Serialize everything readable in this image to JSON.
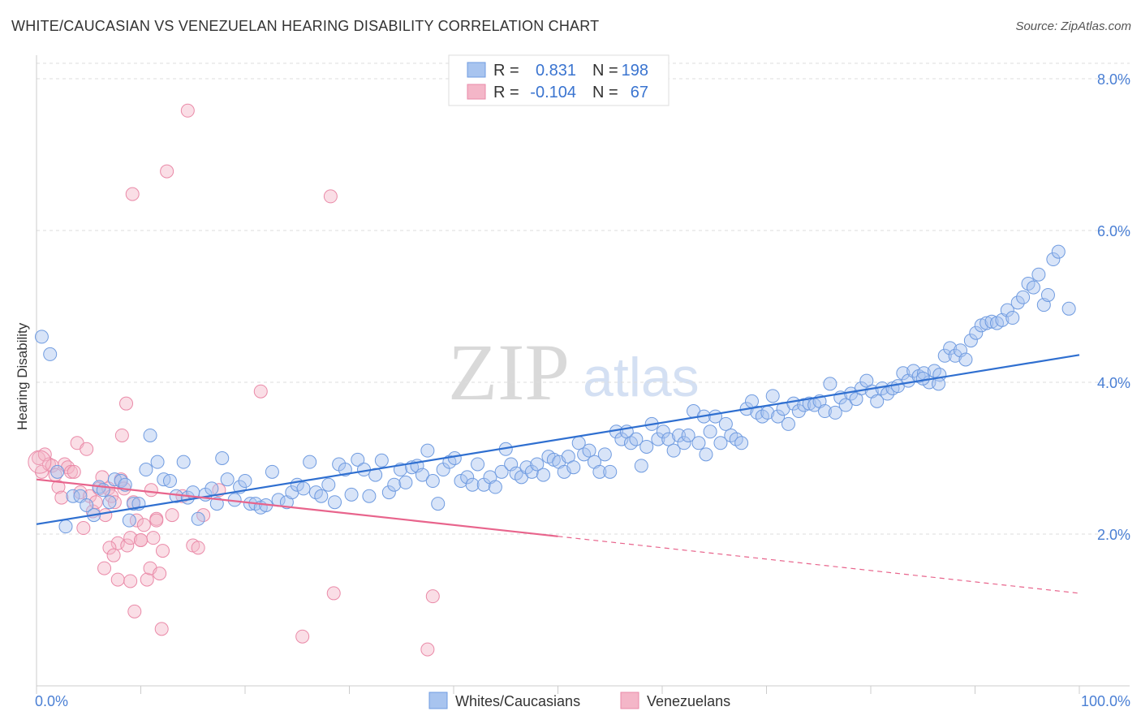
{
  "title": "WHITE/CAUCASIAN VS VENEZUELAN HEARING DISABILITY CORRELATION CHART",
  "source": "Source: ZipAtlas.com",
  "watermark": {
    "zip": "ZIP",
    "atlas": "atlas"
  },
  "colors": {
    "blue_fill": "#a8c4ef",
    "blue_stroke": "#6f9be0",
    "blue_line": "#2f6fd0",
    "pink_fill": "#f4b6c8",
    "pink_stroke": "#ea8aa8",
    "pink_line": "#e8648c",
    "tick_text": "#4a7fd4",
    "grid": "#dddddd"
  },
  "legend": {
    "rows": [
      {
        "r_label": "R =",
        "r_value": "0.831",
        "n_label": "N =",
        "n_value": "198",
        "series": "blue"
      },
      {
        "r_label": "R =",
        "r_value": "-0.104",
        "n_label": "N =",
        "n_value": "67",
        "series": "pink"
      }
    ]
  },
  "bottom_legend": [
    {
      "label": "Whites/Caucasians",
      "series": "blue"
    },
    {
      "label": "Venezuelans",
      "series": "pink"
    }
  ],
  "chart_data": {
    "type": "scatter",
    "title": "WHITE/CAUCASIAN VS VENEZUELAN HEARING DISABILITY CORRELATION CHART",
    "xlabel": "",
    "ylabel": "Hearing Disability",
    "xlim": [
      0,
      100
    ],
    "ylim": [
      0,
      8.2
    ],
    "x_tick_labels": [
      "0.0%",
      "100.0%"
    ],
    "y_ticks": [
      2.0,
      4.0,
      6.0,
      8.0
    ],
    "y_tick_labels": [
      "2.0%",
      "4.0%",
      "6.0%",
      "8.0%"
    ],
    "series": [
      {
        "name": "Whites/Caucasians",
        "R": 0.831,
        "N": 198,
        "trend": {
          "x": [
            0,
            100
          ],
          "y": [
            2.13,
            4.36
          ],
          "dashed_from": null
        },
        "points": [
          [
            0.5,
            4.6
          ],
          [
            1.3,
            4.37
          ],
          [
            2.0,
            2.82
          ],
          [
            2.8,
            2.1
          ],
          [
            3.5,
            2.5
          ],
          [
            4.2,
            2.5
          ],
          [
            4.8,
            2.38
          ],
          [
            5.5,
            2.25
          ],
          [
            6.0,
            2.62
          ],
          [
            6.4,
            2.58
          ],
          [
            7.0,
            2.42
          ],
          [
            7.5,
            2.72
          ],
          [
            8.1,
            2.7
          ],
          [
            8.5,
            2.65
          ],
          [
            8.9,
            2.18
          ],
          [
            9.3,
            2.4
          ],
          [
            9.8,
            2.4
          ],
          [
            10.5,
            2.85
          ],
          [
            10.9,
            3.3
          ],
          [
            11.6,
            2.95
          ],
          [
            12.2,
            2.72
          ],
          [
            12.8,
            2.7
          ],
          [
            13.4,
            2.5
          ],
          [
            14.1,
            2.95
          ],
          [
            14.5,
            2.48
          ],
          [
            15.0,
            2.55
          ],
          [
            15.5,
            2.2
          ],
          [
            16.2,
            2.52
          ],
          [
            16.8,
            2.6
          ],
          [
            17.3,
            2.4
          ],
          [
            17.8,
            3.0
          ],
          [
            18.3,
            2.72
          ],
          [
            19.0,
            2.45
          ],
          [
            19.5,
            2.62
          ],
          [
            20.0,
            2.7
          ],
          [
            20.5,
            2.4
          ],
          [
            21.0,
            2.4
          ],
          [
            21.5,
            2.35
          ],
          [
            22.0,
            2.38
          ],
          [
            22.6,
            2.82
          ],
          [
            23.2,
            2.45
          ],
          [
            24.0,
            2.42
          ],
          [
            24.5,
            2.55
          ],
          [
            25.0,
            2.65
          ],
          [
            25.6,
            2.6
          ],
          [
            26.2,
            2.95
          ],
          [
            26.8,
            2.55
          ],
          [
            27.3,
            2.5
          ],
          [
            28.0,
            2.65
          ],
          [
            28.6,
            2.42
          ],
          [
            29.0,
            2.92
          ],
          [
            29.6,
            2.85
          ],
          [
            30.2,
            2.52
          ],
          [
            30.8,
            2.98
          ],
          [
            31.4,
            2.85
          ],
          [
            31.9,
            2.5
          ],
          [
            32.5,
            2.78
          ],
          [
            33.1,
            2.97
          ],
          [
            33.8,
            2.55
          ],
          [
            34.3,
            2.65
          ],
          [
            34.9,
            2.85
          ],
          [
            35.4,
            2.68
          ],
          [
            36.0,
            2.88
          ],
          [
            36.5,
            2.9
          ],
          [
            37.0,
            2.78
          ],
          [
            37.5,
            3.1
          ],
          [
            38.0,
            2.7
          ],
          [
            38.5,
            2.4
          ],
          [
            39.0,
            2.85
          ],
          [
            39.6,
            2.95
          ],
          [
            40.1,
            3.0
          ],
          [
            40.7,
            2.7
          ],
          [
            41.3,
            2.75
          ],
          [
            41.8,
            2.65
          ],
          [
            42.3,
            2.92
          ],
          [
            42.9,
            2.65
          ],
          [
            43.5,
            2.75
          ],
          [
            44.0,
            2.62
          ],
          [
            44.6,
            2.82
          ],
          [
            45.0,
            3.12
          ],
          [
            45.5,
            2.92
          ],
          [
            46.0,
            2.8
          ],
          [
            46.5,
            2.75
          ],
          [
            47.0,
            2.88
          ],
          [
            47.5,
            2.82
          ],
          [
            48.0,
            2.92
          ],
          [
            48.6,
            2.78
          ],
          [
            49.1,
            3.02
          ],
          [
            49.6,
            2.98
          ],
          [
            50.1,
            2.95
          ],
          [
            50.6,
            2.82
          ],
          [
            51.0,
            3.02
          ],
          [
            51.5,
            2.88
          ],
          [
            52.0,
            3.2
          ],
          [
            52.5,
            3.05
          ],
          [
            53.0,
            3.1
          ],
          [
            53.5,
            2.95
          ],
          [
            54.0,
            2.82
          ],
          [
            54.5,
            3.05
          ],
          [
            55.0,
            2.82
          ],
          [
            55.6,
            3.35
          ],
          [
            56.1,
            3.25
          ],
          [
            56.6,
            3.35
          ],
          [
            57.0,
            3.2
          ],
          [
            57.5,
            3.25
          ],
          [
            58.0,
            2.9
          ],
          [
            58.5,
            3.15
          ],
          [
            59.0,
            3.45
          ],
          [
            59.6,
            3.25
          ],
          [
            60.1,
            3.35
          ],
          [
            60.6,
            3.25
          ],
          [
            61.1,
            3.1
          ],
          [
            61.6,
            3.3
          ],
          [
            62.1,
            3.2
          ],
          [
            62.5,
            3.3
          ],
          [
            63.0,
            3.62
          ],
          [
            63.5,
            3.2
          ],
          [
            64.0,
            3.55
          ],
          [
            64.6,
            3.35
          ],
          [
            65.1,
            3.55
          ],
          [
            65.6,
            3.2
          ],
          [
            66.1,
            3.45
          ],
          [
            66.6,
            3.3
          ],
          [
            67.1,
            3.25
          ],
          [
            67.6,
            3.2
          ],
          [
            68.1,
            3.65
          ],
          [
            68.6,
            3.75
          ],
          [
            69.1,
            3.6
          ],
          [
            69.6,
            3.55
          ],
          [
            70.1,
            3.6
          ],
          [
            70.6,
            3.82
          ],
          [
            71.1,
            3.55
          ],
          [
            71.6,
            3.65
          ],
          [
            72.1,
            3.45
          ],
          [
            72.6,
            3.72
          ],
          [
            73.1,
            3.62
          ],
          [
            73.6,
            3.7
          ],
          [
            74.1,
            3.72
          ],
          [
            74.6,
            3.7
          ],
          [
            75.1,
            3.75
          ],
          [
            75.6,
            3.62
          ],
          [
            76.1,
            3.98
          ],
          [
            76.6,
            3.6
          ],
          [
            77.1,
            3.8
          ],
          [
            77.6,
            3.7
          ],
          [
            78.1,
            3.85
          ],
          [
            78.6,
            3.78
          ],
          [
            79.1,
            3.92
          ],
          [
            79.6,
            4.02
          ],
          [
            80.1,
            3.88
          ],
          [
            80.6,
            3.75
          ],
          [
            81.1,
            3.92
          ],
          [
            81.6,
            3.85
          ],
          [
            82.1,
            3.92
          ],
          [
            82.6,
            3.95
          ],
          [
            83.1,
            4.12
          ],
          [
            83.6,
            4.02
          ],
          [
            84.1,
            4.15
          ],
          [
            84.6,
            4.08
          ],
          [
            85.1,
            4.12
          ],
          [
            85.6,
            4.0
          ],
          [
            86.1,
            4.15
          ],
          [
            86.6,
            4.1
          ],
          [
            87.1,
            4.35
          ],
          [
            87.6,
            4.45
          ],
          [
            88.1,
            4.35
          ],
          [
            88.6,
            4.42
          ],
          [
            89.1,
            4.3
          ],
          [
            89.6,
            4.55
          ],
          [
            90.1,
            4.65
          ],
          [
            90.6,
            4.75
          ],
          [
            91.1,
            4.78
          ],
          [
            91.6,
            4.8
          ],
          [
            92.1,
            4.78
          ],
          [
            92.6,
            4.82
          ],
          [
            93.1,
            4.95
          ],
          [
            93.6,
            4.85
          ],
          [
            94.1,
            5.05
          ],
          [
            94.6,
            5.12
          ],
          [
            95.1,
            5.3
          ],
          [
            95.6,
            5.25
          ],
          [
            96.1,
            5.42
          ],
          [
            96.6,
            5.02
          ],
          [
            97.0,
            5.15
          ],
          [
            97.5,
            5.62
          ],
          [
            98.0,
            5.72
          ],
          [
            99.0,
            4.97
          ],
          [
            85.0,
            4.05
          ],
          [
            86.5,
            3.98
          ],
          [
            64.2,
            3.05
          ]
        ]
      },
      {
        "name": "Venezuelans",
        "R": -0.104,
        "N": 67,
        "trend": {
          "x": [
            0,
            100
          ],
          "y": [
            2.72,
            1.22
          ],
          "dashed_from": 50
        },
        "points": [
          [
            0.2,
            3.0
          ],
          [
            0.5,
            2.82
          ],
          [
            0.8,
            3.05
          ],
          [
            1.2,
            2.92
          ],
          [
            1.5,
            2.9
          ],
          [
            1.8,
            2.78
          ],
          [
            2.1,
            2.62
          ],
          [
            2.4,
            2.48
          ],
          [
            2.7,
            2.92
          ],
          [
            3.0,
            2.88
          ],
          [
            3.3,
            2.82
          ],
          [
            3.6,
            2.82
          ],
          [
            3.9,
            3.2
          ],
          [
            4.2,
            2.55
          ],
          [
            4.5,
            2.08
          ],
          [
            4.8,
            3.12
          ],
          [
            5.1,
            2.5
          ],
          [
            5.4,
            2.3
          ],
          [
            5.7,
            2.42
          ],
          [
            6.0,
            2.6
          ],
          [
            6.3,
            2.75
          ],
          [
            6.6,
            2.25
          ],
          [
            6.9,
            2.6
          ],
          [
            7.2,
            2.5
          ],
          [
            7.5,
            2.42
          ],
          [
            7.8,
            1.88
          ],
          [
            8.1,
            2.72
          ],
          [
            8.4,
            2.6
          ],
          [
            8.7,
            1.85
          ],
          [
            9.0,
            1.95
          ],
          [
            9.3,
            2.42
          ],
          [
            9.6,
            2.18
          ],
          [
            10.0,
            1.92
          ],
          [
            10.3,
            2.12
          ],
          [
            10.6,
            1.4
          ],
          [
            10.9,
            1.55
          ],
          [
            11.2,
            1.95
          ],
          [
            11.5,
            2.2
          ],
          [
            11.8,
            1.48
          ],
          [
            12.1,
            1.78
          ],
          [
            6.5,
            1.55
          ],
          [
            7.0,
            1.82
          ],
          [
            7.4,
            1.72
          ],
          [
            7.8,
            1.4
          ],
          [
            8.2,
            3.3
          ],
          [
            8.6,
            3.72
          ],
          [
            9.0,
            1.38
          ],
          [
            9.4,
            0.98
          ],
          [
            10.0,
            1.92
          ],
          [
            11.0,
            2.58
          ],
          [
            11.5,
            2.18
          ],
          [
            12.0,
            0.75
          ],
          [
            12.5,
            6.78
          ],
          [
            13.0,
            2.25
          ],
          [
            14.0,
            2.5
          ],
          [
            14.5,
            7.58
          ],
          [
            15.0,
            1.85
          ],
          [
            15.5,
            1.82
          ],
          [
            16.0,
            2.25
          ],
          [
            17.5,
            2.58
          ],
          [
            9.2,
            6.48
          ],
          [
            21.5,
            3.88
          ],
          [
            25.5,
            0.65
          ],
          [
            28.2,
            6.45
          ],
          [
            28.5,
            1.22
          ],
          [
            37.5,
            0.48
          ],
          [
            38.0,
            1.18
          ]
        ]
      }
    ]
  }
}
